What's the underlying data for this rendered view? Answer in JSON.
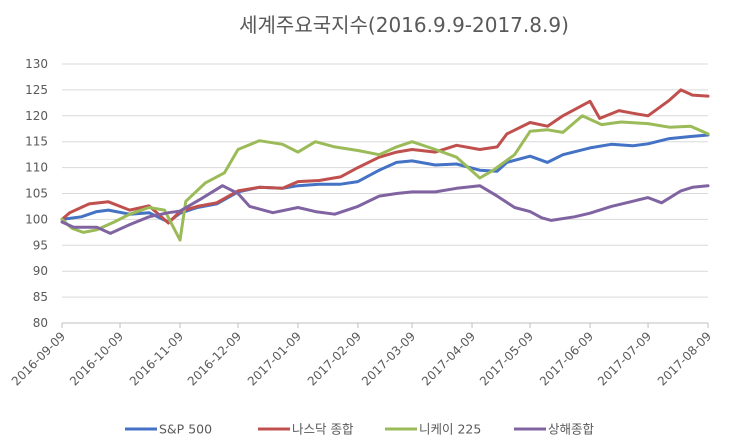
{
  "chart_data": {
    "type": "line",
    "title": "세계주요국지수(2016.9.9-2017.8.9)",
    "xlabel": "",
    "ylabel": "",
    "ylim": [
      80,
      130
    ],
    "ytick_step": 5,
    "x_ticks": [
      "2016-09-09",
      "2016-10-09",
      "2016-11-09",
      "2016-12-09",
      "2017-01-09",
      "2017-02-09",
      "2017-03-09",
      "2017-04-09",
      "2017-05-09",
      "2017-06-09",
      "2017-07-09",
      "2017-08-09"
    ],
    "grid": true,
    "legend_position": "bottom",
    "series": [
      {
        "name": "S&P 500",
        "color": "#4472c4",
        "points": [
          {
            "x": "2016-09-09",
            "y": 100.0
          },
          {
            "x": "2016-09-19",
            "y": 100.5
          },
          {
            "x": "2016-09-27",
            "y": 101.5
          },
          {
            "x": "2016-10-03",
            "y": 101.8
          },
          {
            "x": "2016-10-14",
            "y": 101.0
          },
          {
            "x": "2016-10-24",
            "y": 101.3
          },
          {
            "x": "2016-11-03",
            "y": 99.5
          },
          {
            "x": "2016-11-09",
            "y": 101.2
          },
          {
            "x": "2016-11-18",
            "y": 102.3
          },
          {
            "x": "2016-11-28",
            "y": 103.0
          },
          {
            "x": "2016-12-09",
            "y": 105.3
          },
          {
            "x": "2016-12-20",
            "y": 106.2
          },
          {
            "x": "2017-01-01",
            "y": 106.0
          },
          {
            "x": "2017-01-09",
            "y": 106.5
          },
          {
            "x": "2017-01-20",
            "y": 106.8
          },
          {
            "x": "2017-01-31",
            "y": 106.8
          },
          {
            "x": "2017-02-09",
            "y": 107.3
          },
          {
            "x": "2017-02-20",
            "y": 109.5
          },
          {
            "x": "2017-03-01",
            "y": 111.0
          },
          {
            "x": "2017-03-09",
            "y": 111.3
          },
          {
            "x": "2017-03-21",
            "y": 110.5
          },
          {
            "x": "2017-04-01",
            "y": 110.7
          },
          {
            "x": "2017-04-13",
            "y": 109.5
          },
          {
            "x": "2017-04-22",
            "y": 109.3
          },
          {
            "x": "2017-04-27",
            "y": 111.0
          },
          {
            "x": "2017-05-09",
            "y": 112.2
          },
          {
            "x": "2017-05-18",
            "y": 111.0
          },
          {
            "x": "2017-05-26",
            "y": 112.5
          },
          {
            "x": "2017-06-09",
            "y": 113.8
          },
          {
            "x": "2017-06-20",
            "y": 114.5
          },
          {
            "x": "2017-07-01",
            "y": 114.2
          },
          {
            "x": "2017-07-09",
            "y": 114.6
          },
          {
            "x": "2017-07-20",
            "y": 115.6
          },
          {
            "x": "2017-07-31",
            "y": 116.0
          },
          {
            "x": "2017-08-09",
            "y": 116.3
          }
        ]
      },
      {
        "name": "나스닥 종합",
        "color": "#c0504d",
        "points": [
          {
            "x": "2016-09-09",
            "y": 100.0
          },
          {
            "x": "2016-09-13",
            "y": 101.3
          },
          {
            "x": "2016-09-23",
            "y": 103.0
          },
          {
            "x": "2016-10-03",
            "y": 103.4
          },
          {
            "x": "2016-10-14",
            "y": 101.8
          },
          {
            "x": "2016-10-24",
            "y": 102.6
          },
          {
            "x": "2016-11-03",
            "y": 99.3
          },
          {
            "x": "2016-11-09",
            "y": 101.5
          },
          {
            "x": "2016-11-18",
            "y": 102.5
          },
          {
            "x": "2016-11-28",
            "y": 103.2
          },
          {
            "x": "2016-12-09",
            "y": 105.5
          },
          {
            "x": "2016-12-20",
            "y": 106.2
          },
          {
            "x": "2017-01-01",
            "y": 106.0
          },
          {
            "x": "2017-01-09",
            "y": 107.3
          },
          {
            "x": "2017-01-20",
            "y": 107.5
          },
          {
            "x": "2017-01-31",
            "y": 108.2
          },
          {
            "x": "2017-02-09",
            "y": 110.0
          },
          {
            "x": "2017-02-20",
            "y": 112.0
          },
          {
            "x": "2017-03-01",
            "y": 113.0
          },
          {
            "x": "2017-03-09",
            "y": 113.5
          },
          {
            "x": "2017-03-21",
            "y": 113.0
          },
          {
            "x": "2017-04-01",
            "y": 114.3
          },
          {
            "x": "2017-04-13",
            "y": 113.5
          },
          {
            "x": "2017-04-22",
            "y": 114.0
          },
          {
            "x": "2017-04-27",
            "y": 116.5
          },
          {
            "x": "2017-05-09",
            "y": 118.7
          },
          {
            "x": "2017-05-18",
            "y": 118.0
          },
          {
            "x": "2017-05-26",
            "y": 120.0
          },
          {
            "x": "2017-06-09",
            "y": 122.8
          },
          {
            "x": "2017-06-14",
            "y": 119.5
          },
          {
            "x": "2017-06-24",
            "y": 121.0
          },
          {
            "x": "2017-07-01",
            "y": 120.5
          },
          {
            "x": "2017-07-09",
            "y": 120.0
          },
          {
            "x": "2017-07-20",
            "y": 123.0
          },
          {
            "x": "2017-07-26",
            "y": 125.0
          },
          {
            "x": "2017-08-01",
            "y": 124.0
          },
          {
            "x": "2017-08-09",
            "y": 123.8
          }
        ]
      },
      {
        "name": "니케이 225",
        "color": "#9bbb59",
        "points": [
          {
            "x": "2016-09-09",
            "y": 100.0
          },
          {
            "x": "2016-09-14",
            "y": 98.3
          },
          {
            "x": "2016-09-20",
            "y": 97.5
          },
          {
            "x": "2016-09-27",
            "y": 98.0
          },
          {
            "x": "2016-10-06",
            "y": 99.5
          },
          {
            "x": "2016-10-14",
            "y": 101.0
          },
          {
            "x": "2016-10-24",
            "y": 102.3
          },
          {
            "x": "2016-11-01",
            "y": 101.8
          },
          {
            "x": "2016-11-09",
            "y": 96.0
          },
          {
            "x": "2016-11-12",
            "y": 103.5
          },
          {
            "x": "2016-11-22",
            "y": 107.0
          },
          {
            "x": "2016-12-02",
            "y": 109.0
          },
          {
            "x": "2016-12-09",
            "y": 113.5
          },
          {
            "x": "2016-12-20",
            "y": 115.2
          },
          {
            "x": "2017-01-01",
            "y": 114.5
          },
          {
            "x": "2017-01-09",
            "y": 113.0
          },
          {
            "x": "2017-01-18",
            "y": 115.0
          },
          {
            "x": "2017-01-28",
            "y": 114.0
          },
          {
            "x": "2017-02-09",
            "y": 113.3
          },
          {
            "x": "2017-02-20",
            "y": 112.5
          },
          {
            "x": "2017-03-01",
            "y": 114.0
          },
          {
            "x": "2017-03-09",
            "y": 115.0
          },
          {
            "x": "2017-03-21",
            "y": 113.5
          },
          {
            "x": "2017-04-01",
            "y": 112.0
          },
          {
            "x": "2017-04-13",
            "y": 108.0
          },
          {
            "x": "2017-04-20",
            "y": 109.5
          },
          {
            "x": "2017-05-01",
            "y": 112.5
          },
          {
            "x": "2017-05-09",
            "y": 117.0
          },
          {
            "x": "2017-05-18",
            "y": 117.3
          },
          {
            "x": "2017-05-26",
            "y": 116.8
          },
          {
            "x": "2017-06-05",
            "y": 120.0
          },
          {
            "x": "2017-06-15",
            "y": 118.3
          },
          {
            "x": "2017-06-25",
            "y": 118.8
          },
          {
            "x": "2017-07-09",
            "y": 118.5
          },
          {
            "x": "2017-07-20",
            "y": 117.8
          },
          {
            "x": "2017-07-31",
            "y": 118.0
          },
          {
            "x": "2017-08-09",
            "y": 116.5
          }
        ]
      },
      {
        "name": "상해종합",
        "color": "#8064a2",
        "points": [
          {
            "x": "2016-09-09",
            "y": 99.5
          },
          {
            "x": "2016-09-15",
            "y": 98.5
          },
          {
            "x": "2016-09-27",
            "y": 98.5
          },
          {
            "x": "2016-10-04",
            "y": 97.3
          },
          {
            "x": "2016-10-14",
            "y": 99.0
          },
          {
            "x": "2016-10-24",
            "y": 100.5
          },
          {
            "x": "2016-11-03",
            "y": 101.3
          },
          {
            "x": "2016-11-09",
            "y": 101.6
          },
          {
            "x": "2016-11-20",
            "y": 104.0
          },
          {
            "x": "2016-12-01",
            "y": 106.5
          },
          {
            "x": "2016-12-09",
            "y": 105.0
          },
          {
            "x": "2016-12-15",
            "y": 102.5
          },
          {
            "x": "2016-12-27",
            "y": 101.3
          },
          {
            "x": "2017-01-09",
            "y": 102.3
          },
          {
            "x": "2017-01-18",
            "y": 101.5
          },
          {
            "x": "2017-01-28",
            "y": 101.0
          },
          {
            "x": "2017-02-09",
            "y": 102.5
          },
          {
            "x": "2017-02-20",
            "y": 104.5
          },
          {
            "x": "2017-03-01",
            "y": 105.0
          },
          {
            "x": "2017-03-09",
            "y": 105.3
          },
          {
            "x": "2017-03-21",
            "y": 105.3
          },
          {
            "x": "2017-04-01",
            "y": 106.0
          },
          {
            "x": "2017-04-13",
            "y": 106.5
          },
          {
            "x": "2017-04-22",
            "y": 104.5
          },
          {
            "x": "2017-05-01",
            "y": 102.3
          },
          {
            "x": "2017-05-09",
            "y": 101.5
          },
          {
            "x": "2017-05-15",
            "y": 100.3
          },
          {
            "x": "2017-05-20",
            "y": 99.8
          },
          {
            "x": "2017-06-01",
            "y": 100.5
          },
          {
            "x": "2017-06-09",
            "y": 101.2
          },
          {
            "x": "2017-06-20",
            "y": 102.5
          },
          {
            "x": "2017-07-01",
            "y": 103.5
          },
          {
            "x": "2017-07-09",
            "y": 104.2
          },
          {
            "x": "2017-07-16",
            "y": 103.2
          },
          {
            "x": "2017-07-26",
            "y": 105.5
          },
          {
            "x": "2017-08-01",
            "y": 106.2
          },
          {
            "x": "2017-08-09",
            "y": 106.5
          }
        ]
      }
    ]
  }
}
